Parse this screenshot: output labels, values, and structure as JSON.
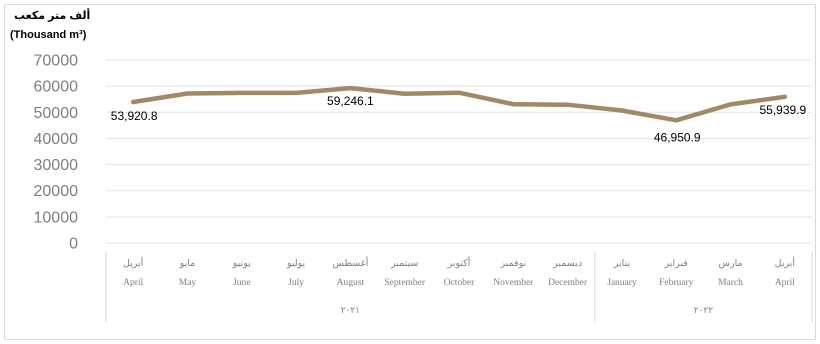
{
  "chart_data": {
    "type": "line",
    "unit_label_ar": "ألف متر مكعب",
    "unit_label_en": "(Thousand m³)",
    "categories_ar": [
      "أبريل",
      "مايو",
      "يونيو",
      "يوليو",
      "أغسطس",
      "سبتمبر",
      "أكتوبر",
      "نوفمبر",
      "ديسمبر",
      "يناير",
      "فبراير",
      "مارس",
      "أبريل"
    ],
    "categories_en": [
      "April",
      "May",
      "June",
      "July",
      "August",
      "September",
      "October",
      "November",
      "December",
      "January",
      "February",
      "March",
      "April"
    ],
    "values": [
      53920.8,
      57200,
      57400,
      57400,
      59246.1,
      57100,
      57500,
      53100,
      52900,
      50700,
      46950.9,
      53000,
      55939.9
    ],
    "data_labels": [
      {
        "index": 0,
        "text": "53,920.8"
      },
      {
        "index": 4,
        "text": "59,246.1"
      },
      {
        "index": 10,
        "text": "46,950.9"
      },
      {
        "index": 12,
        "text": "55,939.9"
      }
    ],
    "y_ticks": [
      "0",
      "10000",
      "20000",
      "30000",
      "40000",
      "50000",
      "60000",
      "70000"
    ],
    "ylim": [
      0,
      70000
    ],
    "grid": true,
    "year_groups": [
      {
        "label": "٢٠٢١",
        "start": 0,
        "end": 8
      },
      {
        "label": "٢٠٢٢",
        "start": 9,
        "end": 12
      }
    ],
    "line_color": "#a08964"
  }
}
